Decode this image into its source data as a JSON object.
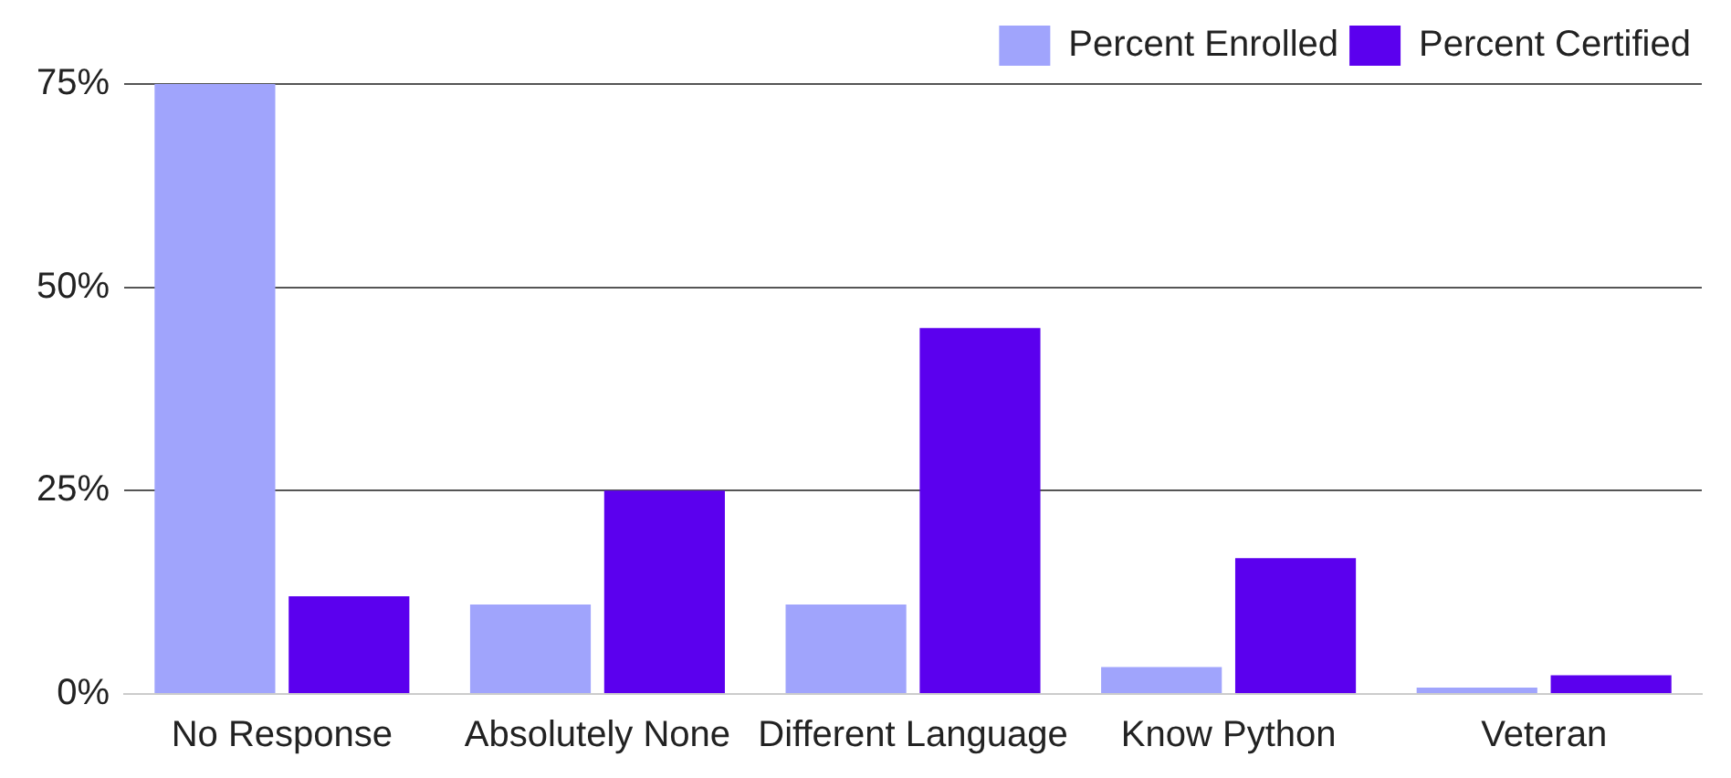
{
  "chart_data": {
    "type": "bar",
    "categories": [
      "No Response",
      "Absolutely None",
      "Different Language",
      "Know Python",
      "Veteran"
    ],
    "series": [
      {
        "name": "Percent Enrolled",
        "color": "#a0a4fc",
        "values": [
          75,
          11,
          11,
          3.3,
          0.8
        ]
      },
      {
        "name": "Percent Certified",
        "color": "#5b00ee",
        "values": [
          12,
          25,
          45,
          16.7,
          2.3
        ]
      }
    ],
    "ylim": [
      0,
      75
    ],
    "yticks": [
      {
        "value": 0,
        "label": "0%"
      },
      {
        "value": 25,
        "label": "25%"
      },
      {
        "value": 50,
        "label": "50%"
      },
      {
        "value": 75,
        "label": "75%"
      }
    ],
    "grid": "y",
    "legend": "top right"
  }
}
